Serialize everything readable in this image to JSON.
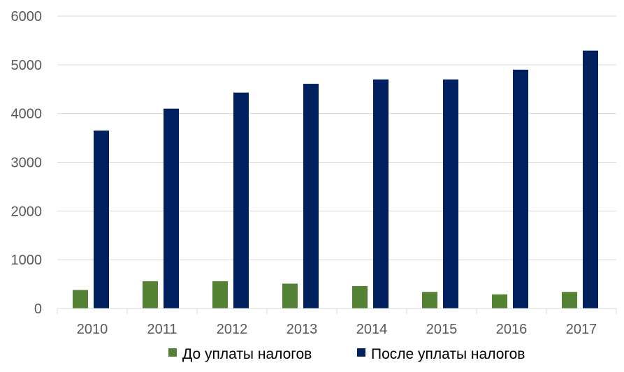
{
  "chart_data": {
    "type": "bar",
    "categories": [
      "2010",
      "2011",
      "2012",
      "2013",
      "2014",
      "2015",
      "2016",
      "2017"
    ],
    "series": [
      {
        "name": "До уплаты налогов",
        "color": "#548235",
        "values": [
          380,
          560,
          560,
          510,
          460,
          340,
          290,
          340
        ]
      },
      {
        "name": "После уплаты налогов",
        "color": "#002060",
        "values": [
          3650,
          4100,
          4430,
          4610,
          4700,
          4700,
          4900,
          5290
        ]
      }
    ],
    "title": "",
    "xlabel": "",
    "ylabel": "",
    "ylim": [
      0,
      6000
    ],
    "yticks": [
      "0",
      "1000",
      "2000",
      "3000",
      "4000",
      "5000",
      "6000"
    ],
    "grid": true,
    "legend": "bottom"
  }
}
